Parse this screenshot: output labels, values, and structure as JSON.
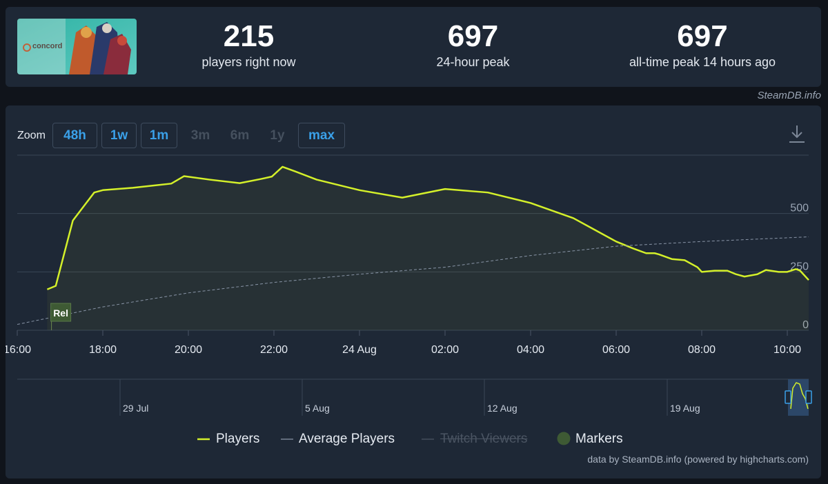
{
  "header": {
    "game_image_alt": "concord",
    "stats": [
      {
        "value": "215",
        "label": "players right now"
      },
      {
        "value": "697",
        "label": "24-hour peak"
      },
      {
        "value": "697",
        "label": "all-time peak 14 hours ago"
      }
    ],
    "credit": "SteamDB.info"
  },
  "zoom": {
    "label": "Zoom",
    "buttons": [
      {
        "label": "48h",
        "enabled": true
      },
      {
        "label": "1w",
        "enabled": true
      },
      {
        "label": "1m",
        "enabled": true
      },
      {
        "label": "3m",
        "enabled": false
      },
      {
        "label": "6m",
        "enabled": false
      },
      {
        "label": "1y",
        "enabled": false
      },
      {
        "label": "max",
        "enabled": true
      }
    ]
  },
  "legend": {
    "players": "Players",
    "average": "Average Players",
    "twitch": "Twitch Viewers",
    "markers": "Markers"
  },
  "footer_credit": "data by SteamDB.info (powered by highcharts.com)",
  "colors": {
    "players": "#d4f02a",
    "average": "#8a96a8",
    "marker": "#3e5a34",
    "accent": "#3aa0e8"
  },
  "chart_data": {
    "type": "line",
    "title": "",
    "xlabel": "",
    "ylabel": "",
    "ylim": [
      0,
      750
    ],
    "y_ticks": [
      0,
      250,
      500
    ],
    "x_tick_labels": [
      "16:00",
      "18:00",
      "20:00",
      "22:00",
      "24 Aug",
      "02:00",
      "04:00",
      "06:00",
      "08:00",
      "10:00"
    ],
    "x_range_hours": [
      16,
      34.5
    ],
    "series": [
      {
        "name": "Players",
        "x_hours": [
          16.7,
          16.9,
          17.3,
          17.8,
          18.0,
          18.7,
          19.2,
          19.6,
          19.9,
          20.5,
          21.2,
          21.7,
          21.95,
          22.2,
          22.5,
          23.0,
          24.0,
          25.0,
          26.0,
          27.0,
          28.0,
          29.0,
          29.5,
          30.0,
          30.4,
          30.7,
          30.9,
          31.0,
          31.3,
          31.6,
          31.9,
          32.0,
          32.3,
          32.6,
          32.8,
          33.0,
          33.3,
          33.5,
          33.8,
          34.0,
          34.2,
          34.3,
          34.5
        ],
        "y": [
          175,
          190,
          470,
          590,
          600,
          610,
          620,
          628,
          660,
          645,
          630,
          648,
          658,
          700,
          680,
          645,
          600,
          568,
          605,
          590,
          545,
          480,
          430,
          380,
          350,
          330,
          330,
          325,
          305,
          300,
          270,
          250,
          255,
          255,
          240,
          230,
          240,
          258,
          250,
          250,
          262,
          255,
          215
        ]
      },
      {
        "name": "Average Players",
        "x_hours": [
          16.0,
          18.0,
          20.0,
          22.0,
          24.0,
          26.0,
          28.0,
          30.0,
          32.0,
          34.5
        ],
        "y": [
          25,
          100,
          160,
          205,
          240,
          270,
          320,
          360,
          380,
          400
        ]
      }
    ],
    "markers": [
      {
        "label": "Rel",
        "x_hours": 16.8
      }
    ],
    "navigator": {
      "date_labels": [
        "29 Jul",
        "5 Aug",
        "12 Aug",
        "19 Aug"
      ]
    }
  }
}
